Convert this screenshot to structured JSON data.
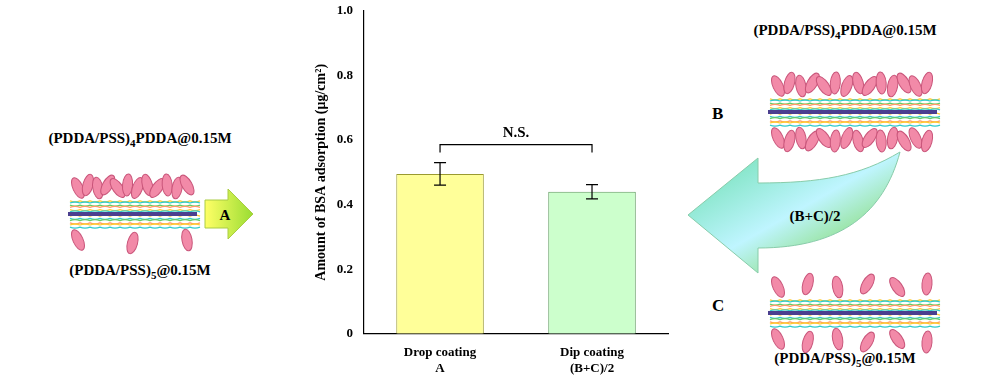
{
  "chart_data": {
    "type": "bar",
    "categories": [
      [
        "Drop coating",
        "A"
      ],
      [
        "Dip coating",
        "(B+C)/2"
      ]
    ],
    "values": [
      0.495,
      0.44
    ],
    "errors": [
      0.035,
      0.022
    ],
    "colors": [
      "#ffff99",
      "#ccffcc"
    ],
    "y_label": "Amount of BSA adsorption (μg/cm²)",
    "ylim": [
      0,
      1
    ],
    "yticks": [
      0,
      0.2,
      0.4,
      0.6,
      0.8,
      {
        "value": 1,
        "label": "1.0"
      }
    ],
    "grid": false,
    "annotations": [
      {
        "text": "N.S.",
        "from": 0,
        "to": 1
      }
    ]
  },
  "diagram": {
    "left": {
      "top_label": [
        {
          "text": "(PDDA/PSS)"
        },
        {
          "text": "4",
          "sub": true
        },
        {
          "text": "PDDA@0.15M"
        }
      ],
      "bottom_label": [
        {
          "text": "(PDDA/PSS)"
        },
        {
          "text": "5",
          "sub": true
        },
        {
          "text": "@0.15M"
        }
      ],
      "arrow_label": "A"
    },
    "right": {
      "top_label": [
        {
          "text": "(PDDA/PSS)"
        },
        {
          "text": "4",
          "sub": true
        },
        {
          "text": "PDDA@0.15M"
        }
      ],
      "top_letter": "B",
      "bottom_label": [
        {
          "text": "(PDDA/PSS)"
        },
        {
          "text": "5",
          "sub": true
        },
        {
          "text": "@0.15M"
        }
      ],
      "bottom_letter": "C",
      "arrow_label": "(B+C)/2"
    }
  }
}
